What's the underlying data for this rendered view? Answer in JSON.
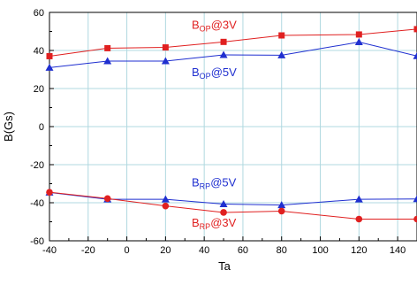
{
  "chart_data": {
    "type": "line",
    "xlabel": "Ta",
    "ylabel": "B(Gs)",
    "xlim": [
      -40,
      150
    ],
    "ylim": [
      -60,
      60
    ],
    "x_major_ticks": [
      -40,
      -20,
      0,
      20,
      40,
      60,
      80,
      100,
      120,
      140
    ],
    "y_major_ticks": [
      -60,
      -40,
      -20,
      0,
      20,
      40,
      60
    ],
    "grid": true,
    "grid_color": "#b0d8e0",
    "series": [
      {
        "name_main": "B",
        "name_sub": "OP",
        "name_suffix": "@3V",
        "color": "#e02020",
        "marker": "square",
        "x": [
          -40,
          -10,
          20,
          50,
          80,
          120,
          150
        ],
        "y": [
          37,
          41.2,
          41.6,
          44.5,
          47.9,
          48.4,
          51.2
        ]
      },
      {
        "name_main": "B",
        "name_sub": "OP",
        "name_suffix": "@5V",
        "color": "#1f2fd0",
        "marker": "triangle",
        "x": [
          -40,
          -10,
          20,
          50,
          80,
          120,
          150
        ],
        "y": [
          31,
          34.4,
          34.4,
          37.7,
          37.5,
          44.4,
          37.1
        ]
      },
      {
        "name_main": "B",
        "name_sub": "RP",
        "name_suffix": "@5V",
        "color": "#1f2fd0",
        "marker": "triangle",
        "x": [
          -40,
          -10,
          20,
          50,
          80,
          120,
          150
        ],
        "y": [
          -34.6,
          -38.2,
          -38.2,
          -40.7,
          -41.2,
          -38.2,
          -38.0
        ]
      },
      {
        "name_main": "B",
        "name_sub": "RP",
        "name_suffix": "@3V",
        "color": "#e02020",
        "marker": "circle",
        "x": [
          -40,
          -10,
          20,
          50,
          80,
          120,
          150
        ],
        "y": [
          -34.5,
          -37.8,
          -41.7,
          -45.1,
          -44.4,
          -48.6,
          -48.6
        ]
      }
    ]
  }
}
